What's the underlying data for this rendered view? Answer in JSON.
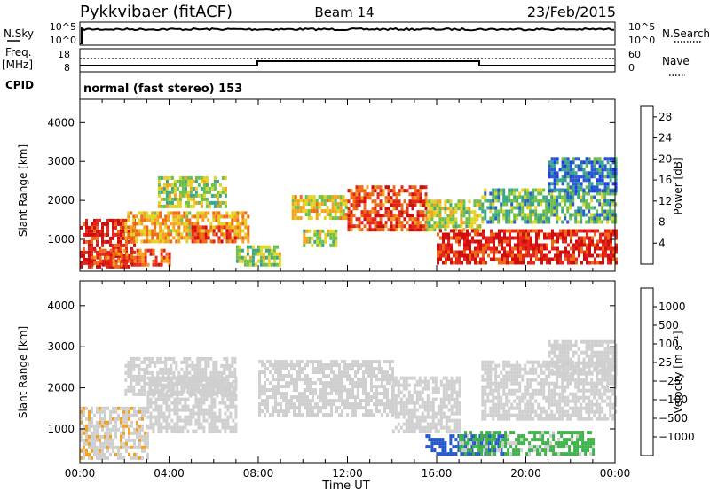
{
  "header": {
    "station": "Pykkvibaer (fitACF)",
    "beam": "Beam 14",
    "date": "23/Feb/2015"
  },
  "sky_panel": {
    "left_label": "N.Sky",
    "left_ticks": [
      "10^5",
      "10^0"
    ],
    "right_ticks": [
      "10^5",
      "10^0"
    ],
    "right_label": "N.Search"
  },
  "freq_panel": {
    "left_label_1": "Freq.",
    "left_label_2": "[MHz]",
    "left_ticks": [
      "18",
      "8"
    ],
    "right_ticks": [
      "60",
      "0"
    ],
    "right_label": "Nave"
  },
  "cpid": {
    "label": "CPID",
    "value": "normal (fast stereo) 153"
  },
  "colors": {
    "scale_power": [
      "#1f3fe6",
      "#2a5ad0",
      "#3aa58a",
      "#6cc04a",
      "#e3d322",
      "#f4a21c",
      "#f06a16",
      "#e6261a",
      "#d10d0d"
    ],
    "scale_velocity": [
      "#d10d0d",
      "#f06a16",
      "#f4a21c",
      "#cfcfcf",
      "#cfcfcf",
      "#3fb24a",
      "#2f8a3e",
      "#2457c7",
      "#1b2f9c"
    ]
  },
  "chart_data": [
    {
      "type": "heatmap",
      "title": "Power",
      "ylabel": "Slant Range [km]",
      "xlabel": "",
      "x_ticks": [
        "00:00",
        "04:00",
        "08:00",
        "12:00",
        "16:00",
        "20:00",
        "00:00"
      ],
      "y_ticks": [
        1000,
        2000,
        3000,
        4000
      ],
      "ylim": [
        180,
        4600
      ],
      "colorbar_label": "Power [dB]",
      "colorbar_ticks": [
        4,
        8,
        12,
        16,
        20,
        24,
        28
      ],
      "colorbar_range": [
        0,
        30
      ],
      "regions": [
        {
          "t0": 0.0,
          "t1": 2.5,
          "r0": 250,
          "r1": 1500,
          "value": 26
        },
        {
          "t0": 0.5,
          "t1": 4.0,
          "r0": 300,
          "r1": 700,
          "value": 22
        },
        {
          "t0": 2.0,
          "t1": 7.5,
          "r0": 900,
          "r1": 1700,
          "value": 18
        },
        {
          "t0": 3.5,
          "t1": 6.5,
          "r0": 1800,
          "r1": 2600,
          "value": 13
        },
        {
          "t0": 5.0,
          "t1": 7.0,
          "r0": 900,
          "r1": 1300,
          "value": 24
        },
        {
          "t0": 7.0,
          "t1": 9.0,
          "r0": 300,
          "r1": 800,
          "value": 12
        },
        {
          "t0": 9.5,
          "t1": 12.0,
          "r0": 1500,
          "r1": 2100,
          "value": 16
        },
        {
          "t0": 10.0,
          "t1": 11.5,
          "r0": 800,
          "r1": 1200,
          "value": 14
        },
        {
          "t0": 12.0,
          "t1": 15.5,
          "r0": 1200,
          "r1": 2300,
          "value": 24
        },
        {
          "t0": 15.5,
          "t1": 18.0,
          "r0": 1200,
          "r1": 2000,
          "value": 14
        },
        {
          "t0": 16.0,
          "t1": 24.0,
          "r0": 350,
          "r1": 1200,
          "value": 26
        },
        {
          "t0": 18.0,
          "t1": 24.0,
          "r0": 1400,
          "r1": 2300,
          "value": 10
        },
        {
          "t0": 21.0,
          "t1": 24.0,
          "r0": 2200,
          "r1": 3100,
          "value": 6
        }
      ]
    },
    {
      "type": "heatmap",
      "title": "Velocity",
      "ylabel": "Slant Range [km]",
      "xlabel": "Time UT",
      "x_ticks": [
        "00:00",
        "04:00",
        "08:00",
        "12:00",
        "16:00",
        "20:00",
        "00:00"
      ],
      "y_ticks": [
        1000,
        2000,
        3000,
        4000
      ],
      "ylim": [
        180,
        4600
      ],
      "colorbar_label": "Velocity  [m s⁻¹]",
      "colorbar_ticks": [
        "1000",
        "500",
        "100",
        "25",
        "−25",
        "−100",
        "−500",
        "−1000"
      ],
      "colorbar_range": [
        -1000,
        1000
      ],
      "regions": [
        {
          "t0": 0.0,
          "t1": 3.0,
          "r0": 250,
          "r1": 1500,
          "value": -300
        },
        {
          "t0": 3.0,
          "t1": 7.0,
          "r0": 900,
          "r1": 2200,
          "value": -150
        },
        {
          "t0": 2.0,
          "t1": 7.0,
          "r0": 1800,
          "r1": 2700,
          "value": 0
        },
        {
          "t0": 8.0,
          "t1": 14.0,
          "r0": 1300,
          "r1": 2600,
          "value": 0
        },
        {
          "t0": 14.0,
          "t1": 17.0,
          "r0": 900,
          "r1": 2200,
          "value": 0
        },
        {
          "t0": 15.5,
          "t1": 19.0,
          "r0": 350,
          "r1": 800,
          "value": 700
        },
        {
          "t0": 17.0,
          "t1": 23.0,
          "r0": 350,
          "r1": 900,
          "value": 150
        },
        {
          "t0": 18.0,
          "t1": 24.0,
          "r0": 1200,
          "r1": 2600,
          "value": 0
        },
        {
          "t0": 21.0,
          "t1": 24.0,
          "r0": 2300,
          "r1": 3100,
          "value": 0
        }
      ]
    }
  ]
}
